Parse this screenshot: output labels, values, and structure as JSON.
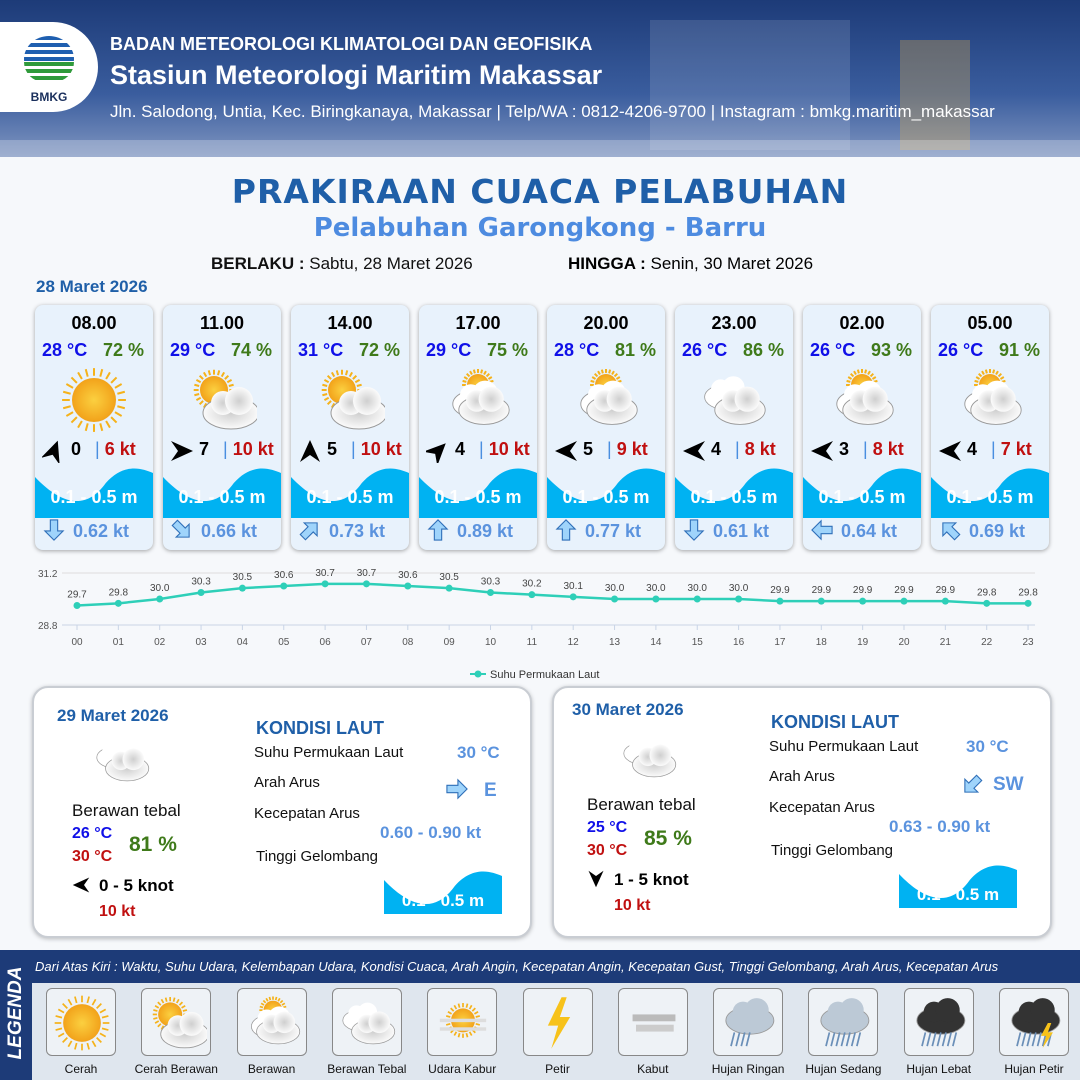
{
  "header": {
    "org": "BADAN METEOROLOGI KLIMATOLOGI DAN GEOFISIKA",
    "station": "Stasiun Meteorologi Maritim Makassar",
    "contact": "Jln. Salodong, Untia, Kec. Biringkanaya, Makassar | Telp/WA : 0812-4206-9700 | Instagram : bmkg.maritim_makassar",
    "logo_text": "BMKG"
  },
  "title": "PRAKIRAAN CUACA PELABUHAN",
  "subtitle": "Pelabuhan Garongkong - Barru",
  "validity": {
    "from_label": "BERLAKU :",
    "from": "Sabtu, 28 Maret 2026",
    "to_label": "HINGGA :",
    "to": "Senin, 30 Maret 2026"
  },
  "day1": {
    "date": "28 Maret 2026",
    "cards": [
      {
        "time": "08.00",
        "temp": "28 °C",
        "hum": "72 %",
        "icon": "cerah",
        "wind_dir_deg": 20,
        "wind": "0",
        "gust": "6 kt",
        "wave": "0.1 - 0.5 m",
        "cur_dir_deg": 180,
        "cur": "0.62 kt"
      },
      {
        "time": "11.00",
        "temp": "29 °C",
        "hum": "74 %",
        "icon": "cerah-berawan",
        "wind_dir_deg": 90,
        "wind": "7",
        "gust": "10 kt",
        "wave": "0.1 - 0.5 m",
        "cur_dir_deg": 135,
        "cur": "0.66 kt"
      },
      {
        "time": "14.00",
        "temp": "31 °C",
        "hum": "72 %",
        "icon": "cerah-berawan",
        "wind_dir_deg": 0,
        "wind": "5",
        "gust": "10 kt",
        "wave": "0.1 - 0.5 m",
        "cur_dir_deg": 45,
        "cur": "0.73 kt"
      },
      {
        "time": "17.00",
        "temp": "29 °C",
        "hum": "75 %",
        "icon": "berawan",
        "wind_dir_deg": 45,
        "wind": "4",
        "gust": "10 kt",
        "wave": "0.1 - 0.5 m",
        "cur_dir_deg": 0,
        "cur": "0.89 kt"
      },
      {
        "time": "20.00",
        "temp": "28 °C",
        "hum": "81 %",
        "icon": "berawan",
        "wind_dir_deg": 270,
        "wind": "5",
        "gust": "9 kt",
        "wave": "0.1 - 0.5 m",
        "cur_dir_deg": 0,
        "cur": "0.77 kt"
      },
      {
        "time": "23.00",
        "temp": "26 °C",
        "hum": "86 %",
        "icon": "berawan-tebal",
        "wind_dir_deg": 270,
        "wind": "4",
        "gust": "8 kt",
        "wave": "0.1 - 0.5 m",
        "cur_dir_deg": 180,
        "cur": "0.61 kt"
      },
      {
        "time": "02.00",
        "temp": "26 °C",
        "hum": "93 %",
        "icon": "berawan",
        "wind_dir_deg": 270,
        "wind": "3",
        "gust": "8 kt",
        "wave": "0.1 - 0.5 m",
        "cur_dir_deg": 270,
        "cur": "0.64 kt"
      },
      {
        "time": "05.00",
        "temp": "26 °C",
        "hum": "91 %",
        "icon": "berawan",
        "wind_dir_deg": 270,
        "wind": "4",
        "gust": "7 kt",
        "wave": "0.1 - 0.5 m",
        "cur_dir_deg": 315,
        "cur": "0.69 kt"
      }
    ]
  },
  "chart_data": {
    "type": "line",
    "categories": [
      "00",
      "01",
      "02",
      "03",
      "04",
      "05",
      "06",
      "07",
      "08",
      "09",
      "10",
      "11",
      "12",
      "13",
      "14",
      "15",
      "16",
      "17",
      "18",
      "19",
      "20",
      "21",
      "22",
      "23"
    ],
    "series": [
      {
        "name": "Suhu Permukaan Laut",
        "values": [
          29.7,
          29.8,
          30.0,
          30.3,
          30.5,
          30.6,
          30.7,
          30.7,
          30.6,
          30.5,
          30.3,
          30.2,
          30.1,
          30.0,
          30.0,
          30.0,
          30.0,
          29.9,
          29.9,
          29.9,
          29.9,
          29.9,
          29.8,
          29.8
        ]
      }
    ],
    "ylim": [
      28.8,
      31.2
    ],
    "yticks": [
      "28.8",
      "31.2"
    ],
    "legend": "bottom",
    "color": "#2ecfb8"
  },
  "panels": [
    {
      "date": "29 Maret 2026",
      "cond": "Berawan tebal",
      "tmin": "26 °C",
      "tmax": "30 °C",
      "hum": "81 %",
      "wind_dir_deg": 270,
      "wind": "0 - 5 knot",
      "gust": "10 kt",
      "title": "KONDISI LAUT",
      "sst_label": "Suhu Permukaan Laut",
      "sst": "30 °C",
      "cur_dir_label": "Arah Arus",
      "cur_dir": "E",
      "cur_dir_deg": 90,
      "cur_speed_label": "Kecepatan Arus",
      "cur_speed": "0.60 - 0.90 kt",
      "wave_label": "Tinggi Gelombang",
      "wave": "0.1 - 0.5 m"
    },
    {
      "date": "30 Maret 2026",
      "cond": "Berawan tebal",
      "tmin": "25 °C",
      "tmax": "30 °C",
      "hum": "85 %",
      "wind_dir_deg": 180,
      "wind": "1 - 5 knot",
      "gust": "10 kt",
      "title": "KONDISI LAUT",
      "sst_label": "Suhu Permukaan Laut",
      "sst": "30 °C",
      "cur_dir_label": "Arah Arus",
      "cur_dir": "SW",
      "cur_dir_deg": 225,
      "cur_speed_label": "Kecepatan Arus",
      "cur_speed": "0.63 - 0.90 kt",
      "wave_label": "Tinggi Gelombang",
      "wave": "0.1 - 0.5 m"
    }
  ],
  "legend": {
    "side": "LEGENDA",
    "caption": "Dari Atas Kiri : Waktu, Suhu Udara, Kelembapan Udara, Kondisi Cuaca, Arah Angin, Kecepatan Angin, Kecepatan Gust, Tinggi Gelombang, Arah Arus, Kecepatan Arus",
    "items": [
      {
        "icon": "cerah",
        "label": "Cerah"
      },
      {
        "icon": "cerah-berawan",
        "label": "Cerah Berawan"
      },
      {
        "icon": "berawan",
        "label": "Berawan"
      },
      {
        "icon": "berawan-tebal",
        "label": "Berawan Tebal"
      },
      {
        "icon": "udara-kabur",
        "label": "Udara Kabur"
      },
      {
        "icon": "petir",
        "label": "Petir"
      },
      {
        "icon": "kabut",
        "label": "Kabut"
      },
      {
        "icon": "hujan-ringan",
        "label": "Hujan Ringan"
      },
      {
        "icon": "hujan-sedang",
        "label": "Hujan Sedang"
      },
      {
        "icon": "hujan-lebat",
        "label": "Hujan Lebat"
      },
      {
        "icon": "hujan-petir",
        "label": "Hujan Petir"
      }
    ]
  }
}
